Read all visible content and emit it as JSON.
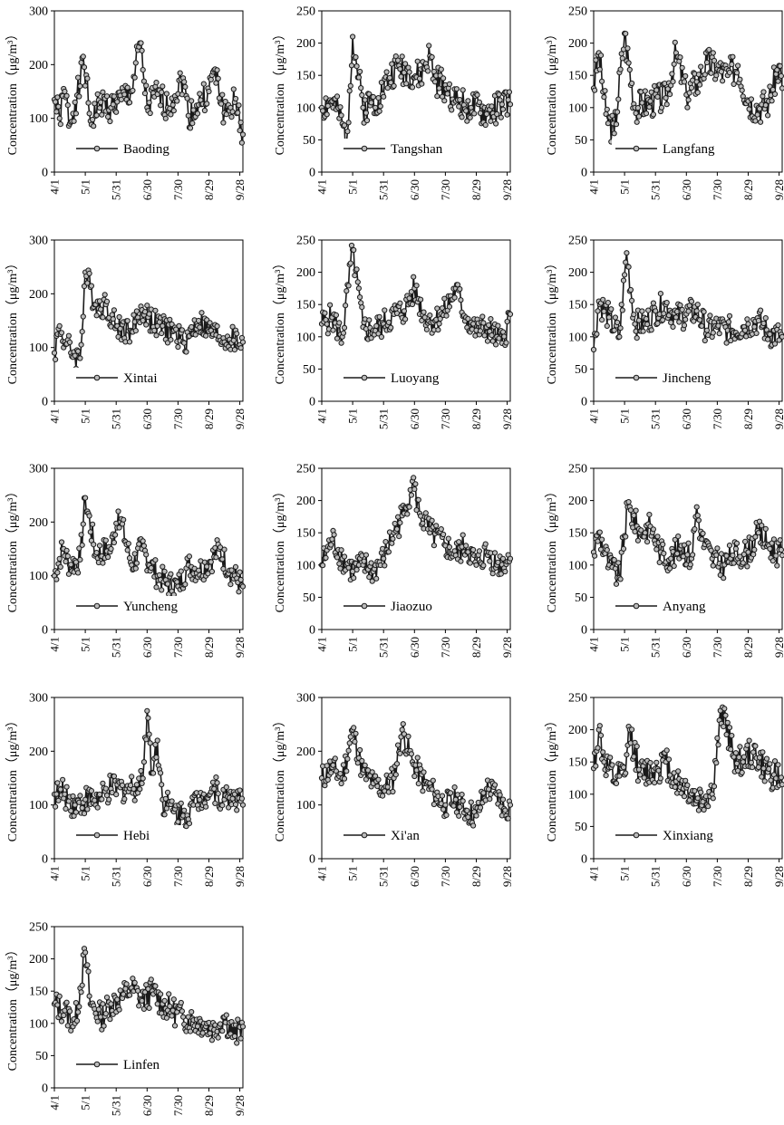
{
  "figure": {
    "ylabel": "Concentration（μg/m³）",
    "xticks": [
      "4/1",
      "5/1",
      "5/31",
      "6/30",
      "7/30",
      "8/29",
      "9/28"
    ],
    "line_color": "#1a1a1a",
    "marker_fill": "#bbbbbb"
  },
  "chart_data": [
    {
      "type": "line",
      "title": "",
      "legend": "Baoding",
      "ylim": [
        0,
        300
      ],
      "yticks": [
        0,
        100,
        200,
        300
      ],
      "x_range": [
        "4/1",
        "9/30"
      ],
      "anchors": [
        [
          0,
          135
        ],
        [
          5,
          100
        ],
        [
          10,
          150
        ],
        [
          15,
          90
        ],
        [
          20,
          130
        ],
        [
          25,
          160
        ],
        [
          28,
          215
        ],
        [
          35,
          95
        ],
        [
          45,
          130
        ],
        [
          55,
          120
        ],
        [
          65,
          135
        ],
        [
          75,
          150
        ],
        [
          83,
          240
        ],
        [
          90,
          120
        ],
        [
          100,
          145
        ],
        [
          110,
          120
        ],
        [
          125,
          175
        ],
        [
          130,
          105
        ],
        [
          140,
          125
        ],
        [
          150,
          150
        ],
        [
          155,
          190
        ],
        [
          165,
          110
        ],
        [
          175,
          130
        ],
        [
          183,
          70
        ]
      ],
      "amp": 28,
      "seed": 1
    },
    {
      "type": "line",
      "title": "",
      "legend": "Tangshan",
      "ylim": [
        0,
        250
      ],
      "yticks": [
        0,
        50,
        100,
        150,
        200,
        250
      ],
      "x_range": [
        "4/1",
        "9/30"
      ],
      "anchors": [
        [
          0,
          100
        ],
        [
          10,
          110
        ],
        [
          20,
          75
        ],
        [
          24,
          45
        ],
        [
          30,
          210
        ],
        [
          40,
          100
        ],
        [
          55,
          115
        ],
        [
          65,
          145
        ],
        [
          75,
          165
        ],
        [
          85,
          155
        ],
        [
          95,
          145
        ],
        [
          105,
          180
        ],
        [
          110,
          140
        ],
        [
          120,
          135
        ],
        [
          130,
          110
        ],
        [
          145,
          100
        ],
        [
          160,
          90
        ],
        [
          175,
          105
        ],
        [
          183,
          105
        ]
      ],
      "amp": 25,
      "seed": 2
    },
    {
      "type": "line",
      "title": "",
      "legend": "Langfang",
      "ylim": [
        0,
        250
      ],
      "yticks": [
        0,
        50,
        100,
        150,
        200,
        250
      ],
      "x_range": [
        "4/1",
        "9/30"
      ],
      "anchors": [
        [
          0,
          130
        ],
        [
          5,
          185
        ],
        [
          12,
          90
        ],
        [
          20,
          60
        ],
        [
          30,
          215
        ],
        [
          40,
          100
        ],
        [
          55,
          110
        ],
        [
          70,
          115
        ],
        [
          80,
          185
        ],
        [
          90,
          120
        ],
        [
          100,
          140
        ],
        [
          110,
          170
        ],
        [
          120,
          160
        ],
        [
          130,
          150
        ],
        [
          140,
          165
        ],
        [
          150,
          110
        ],
        [
          160,
          100
        ],
        [
          170,
          110
        ],
        [
          180,
          165
        ],
        [
          183,
          130
        ]
      ],
      "amp": 25,
      "seed": 3
    },
    {
      "type": "line",
      "title": "",
      "legend": "Xintai",
      "ylim": [
        0,
        300
      ],
      "yticks": [
        0,
        100,
        200,
        300
      ],
      "x_range": [
        "4/1",
        "9/30"
      ],
      "anchors": [
        [
          0,
          90
        ],
        [
          5,
          140
        ],
        [
          10,
          110
        ],
        [
          20,
          85
        ],
        [
          25,
          80
        ],
        [
          30,
          240
        ],
        [
          40,
          180
        ],
        [
          50,
          180
        ],
        [
          60,
          140
        ],
        [
          75,
          130
        ],
        [
          85,
          170
        ],
        [
          100,
          140
        ],
        [
          115,
          130
        ],
        [
          125,
          110
        ],
        [
          130,
          120
        ],
        [
          140,
          150
        ],
        [
          150,
          130
        ],
        [
          160,
          120
        ],
        [
          170,
          115
        ],
        [
          183,
          110
        ]
      ],
      "amp": 25,
      "seed": 4
    },
    {
      "type": "line",
      "title": "",
      "legend": "Luoyang",
      "ylim": [
        0,
        250
      ],
      "yticks": [
        0,
        50,
        100,
        150,
        200,
        250
      ],
      "x_range": [
        "4/1",
        "9/30"
      ],
      "anchors": [
        [
          0,
          120
        ],
        [
          10,
          130
        ],
        [
          20,
          100
        ],
        [
          30,
          235
        ],
        [
          40,
          115
        ],
        [
          50,
          110
        ],
        [
          60,
          120
        ],
        [
          70,
          135
        ],
        [
          80,
          140
        ],
        [
          90,
          175
        ],
        [
          100,
          130
        ],
        [
          110,
          125
        ],
        [
          120,
          140
        ],
        [
          130,
          175
        ],
        [
          140,
          130
        ],
        [
          150,
          110
        ],
        [
          160,
          115
        ],
        [
          170,
          100
        ],
        [
          175,
          90
        ],
        [
          183,
          135
        ]
      ],
      "amp": 22,
      "seed": 5
    },
    {
      "type": "line",
      "title": "",
      "legend": "Jincheng",
      "ylim": [
        0,
        250
      ],
      "yticks": [
        0,
        50,
        100,
        150,
        200,
        250
      ],
      "x_range": [
        "4/1",
        "9/30"
      ],
      "anchors": [
        [
          0,
          80
        ],
        [
          5,
          155
        ],
        [
          15,
          130
        ],
        [
          25,
          100
        ],
        [
          32,
          230
        ],
        [
          40,
          120
        ],
        [
          50,
          120
        ],
        [
          60,
          140
        ],
        [
          70,
          150
        ],
        [
          80,
          130
        ],
        [
          100,
          140
        ],
        [
          110,
          110
        ],
        [
          120,
          115
        ],
        [
          130,
          110
        ],
        [
          145,
          115
        ],
        [
          150,
          120
        ],
        [
          160,
          125
        ],
        [
          170,
          105
        ],
        [
          183,
          100
        ]
      ],
      "amp": 22,
      "seed": 6
    },
    {
      "type": "line",
      "title": "",
      "legend": "Yuncheng",
      "ylim": [
        0,
        300
      ],
      "yticks": [
        0,
        100,
        200,
        300
      ],
      "x_range": [
        "4/1",
        "9/30"
      ],
      "anchors": [
        [
          0,
          100
        ],
        [
          8,
          150
        ],
        [
          15,
          120
        ],
        [
          25,
          130
        ],
        [
          30,
          245
        ],
        [
          40,
          140
        ],
        [
          55,
          150
        ],
        [
          62,
          220
        ],
        [
          75,
          120
        ],
        [
          85,
          150
        ],
        [
          100,
          100
        ],
        [
          110,
          85
        ],
        [
          120,
          80
        ],
        [
          130,
          120
        ],
        [
          140,
          110
        ],
        [
          150,
          125
        ],
        [
          160,
          150
        ],
        [
          170,
          110
        ],
        [
          183,
          80
        ]
      ],
      "amp": 25,
      "seed": 7
    },
    {
      "type": "line",
      "title": "",
      "legend": "Jiaozuo",
      "ylim": [
        0,
        250
      ],
      "yticks": [
        0,
        50,
        100,
        150,
        200,
        250
      ],
      "x_range": [
        "4/1",
        "9/30"
      ],
      "anchors": [
        [
          0,
          100
        ],
        [
          10,
          140
        ],
        [
          20,
          110
        ],
        [
          30,
          90
        ],
        [
          40,
          100
        ],
        [
          50,
          90
        ],
        [
          60,
          110
        ],
        [
          70,
          150
        ],
        [
          80,
          180
        ],
        [
          88,
          230
        ],
        [
          95,
          180
        ],
        [
          105,
          150
        ],
        [
          120,
          130
        ],
        [
          130,
          115
        ],
        [
          140,
          130
        ],
        [
          150,
          100
        ],
        [
          160,
          120
        ],
        [
          170,
          100
        ],
        [
          183,
          110
        ]
      ],
      "amp": 22,
      "seed": 8
    },
    {
      "type": "line",
      "title": "",
      "legend": "Anyang",
      "ylim": [
        0,
        250
      ],
      "yticks": [
        0,
        50,
        100,
        150,
        200,
        250
      ],
      "x_range": [
        "4/1",
        "9/30"
      ],
      "anchors": [
        [
          0,
          120
        ],
        [
          5,
          150
        ],
        [
          15,
          100
        ],
        [
          25,
          80
        ],
        [
          33,
          190
        ],
        [
          45,
          150
        ],
        [
          55,
          160
        ],
        [
          65,
          120
        ],
        [
          75,
          110
        ],
        [
          85,
          130
        ],
        [
          95,
          110
        ],
        [
          100,
          190
        ],
        [
          105,
          140
        ],
        [
          115,
          110
        ],
        [
          125,
          100
        ],
        [
          135,
          115
        ],
        [
          150,
          120
        ],
        [
          160,
          150
        ],
        [
          170,
          130
        ],
        [
          183,
          115
        ]
      ],
      "amp": 22,
      "seed": 9
    },
    {
      "type": "line",
      "title": "",
      "legend": "Hebi",
      "ylim": [
        0,
        300
      ],
      "yticks": [
        0,
        100,
        200,
        300
      ],
      "x_range": [
        "4/1",
        "9/30"
      ],
      "anchors": [
        [
          0,
          120
        ],
        [
          10,
          120
        ],
        [
          20,
          100
        ],
        [
          30,
          110
        ],
        [
          45,
          110
        ],
        [
          55,
          130
        ],
        [
          70,
          130
        ],
        [
          85,
          140
        ],
        [
          90,
          275
        ],
        [
          95,
          160
        ],
        [
          100,
          220
        ],
        [
          105,
          110
        ],
        [
          115,
          90
        ],
        [
          125,
          80
        ],
        [
          135,
          100
        ],
        [
          145,
          120
        ],
        [
          155,
          130
        ],
        [
          165,
          110
        ],
        [
          175,
          120
        ],
        [
          183,
          100
        ]
      ],
      "amp": 27,
      "seed": 10
    },
    {
      "type": "line",
      "title": "",
      "legend": "Xi'an",
      "ylim": [
        0,
        300
      ],
      "yticks": [
        0,
        100,
        200,
        300
      ],
      "x_range": [
        "4/1",
        "9/30"
      ],
      "anchors": [
        [
          0,
          150
        ],
        [
          10,
          170
        ],
        [
          20,
          150
        ],
        [
          30,
          240
        ],
        [
          40,
          160
        ],
        [
          50,
          140
        ],
        [
          60,
          130
        ],
        [
          70,
          150
        ],
        [
          78,
          240
        ],
        [
          88,
          180
        ],
        [
          100,
          140
        ],
        [
          110,
          120
        ],
        [
          120,
          100
        ],
        [
          130,
          110
        ],
        [
          140,
          90
        ],
        [
          150,
          80
        ],
        [
          160,
          130
        ],
        [
          170,
          120
        ],
        [
          178,
          90
        ],
        [
          183,
          100
        ]
      ],
      "amp": 25,
      "seed": 11
    },
    {
      "type": "line",
      "title": "",
      "legend": "Xinxiang",
      "ylim": [
        0,
        250
      ],
      "yticks": [
        0,
        50,
        100,
        150,
        200,
        250
      ],
      "x_range": [
        "4/1",
        "9/30"
      ],
      "anchors": [
        [
          0,
          140
        ],
        [
          5,
          200
        ],
        [
          10,
          150
        ],
        [
          20,
          120
        ],
        [
          30,
          130
        ],
        [
          35,
          200
        ],
        [
          45,
          130
        ],
        [
          60,
          140
        ],
        [
          70,
          150
        ],
        [
          80,
          120
        ],
        [
          90,
          110
        ],
        [
          100,
          90
        ],
        [
          115,
          100
        ],
        [
          125,
          235
        ],
        [
          135,
          160
        ],
        [
          145,
          150
        ],
        [
          155,
          165
        ],
        [
          165,
          140
        ],
        [
          175,
          130
        ],
        [
          183,
          115
        ]
      ],
      "amp": 25,
      "seed": 12
    },
    {
      "type": "line",
      "title": "",
      "legend": "Linfen",
      "ylim": [
        0,
        250
      ],
      "yticks": [
        0,
        50,
        100,
        150,
        200,
        250
      ],
      "x_range": [
        "4/1",
        "9/30"
      ],
      "anchors": [
        [
          0,
          130
        ],
        [
          10,
          120
        ],
        [
          20,
          100
        ],
        [
          30,
          210
        ],
        [
          35,
          130
        ],
        [
          45,
          110
        ],
        [
          55,
          130
        ],
        [
          65,
          140
        ],
        [
          75,
          155
        ],
        [
          85,
          135
        ],
        [
          95,
          150
        ],
        [
          105,
          130
        ],
        [
          115,
          120
        ],
        [
          125,
          110
        ],
        [
          135,
          105
        ],
        [
          145,
          100
        ],
        [
          155,
          90
        ],
        [
          165,
          110
        ],
        [
          175,
          80
        ],
        [
          183,
          95
        ]
      ],
      "amp": 22,
      "seed": 13
    }
  ]
}
